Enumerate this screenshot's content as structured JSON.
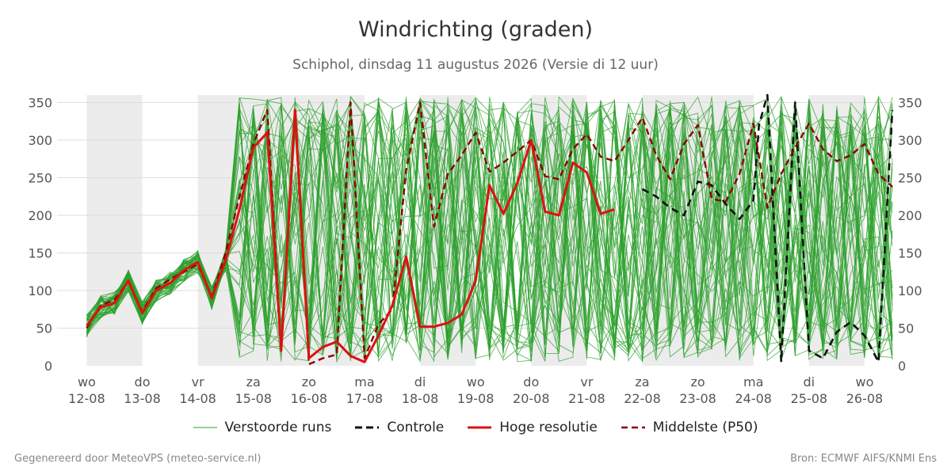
{
  "header": {
    "title": "Windrichting (graden)",
    "subtitle": "Schiphol, dinsdag 11 augustus 2026 (Versie di 12 uur)"
  },
  "footer": {
    "left": "Gegenereerd door MeteoVPS (meteo-service.nl)",
    "right": "Bron: ECMWF AIFS/KNMI Ens"
  },
  "legend": {
    "ensemble": "Verstoorde runs",
    "control": "Controle",
    "hires": "Hoge resolutie",
    "median": "Middelste (P50)"
  },
  "colors": {
    "ensemble": "#2ca02c",
    "control": "#111111",
    "hires": "#dd1111",
    "median": "#8b0000",
    "weekend_band": "#ececec",
    "grid": "#dddddd"
  },
  "chart_data": {
    "type": "line",
    "title": "Windrichting (graden)",
    "subtitle": "Schiphol, dinsdag 11 augustus 2026 (Versie di 12 uur)",
    "ylim": [
      0,
      360
    ],
    "yticks": [
      0,
      50,
      100,
      150,
      200,
      250,
      300,
      350
    ],
    "xlim": [
      11.98,
      26.5
    ],
    "x_unit": "day of August 2026",
    "x_ticks": [
      {
        "day": 12,
        "label1": "wo",
        "label2": "12-08"
      },
      {
        "day": 13,
        "label1": "do",
        "label2": "13-08"
      },
      {
        "day": 14,
        "label1": "vr",
        "label2": "14-08"
      },
      {
        "day": 15,
        "label1": "za",
        "label2": "15-08"
      },
      {
        "day": 16,
        "label1": "zo",
        "label2": "16-08"
      },
      {
        "day": 17,
        "label1": "ma",
        "label2": "17-08"
      },
      {
        "day": 18,
        "label1": "di",
        "label2": "18-08"
      },
      {
        "day": 19,
        "label1": "wo",
        "label2": "19-08"
      },
      {
        "day": 20,
        "label1": "do",
        "label2": "20-08"
      },
      {
        "day": 21,
        "label1": "vr",
        "label2": "21-08"
      },
      {
        "day": 22,
        "label1": "za",
        "label2": "22-08"
      },
      {
        "day": 23,
        "label1": "zo",
        "label2": "23-08"
      },
      {
        "day": 24,
        "label1": "ma",
        "label2": "24-08"
      },
      {
        "day": 25,
        "label1": "di",
        "label2": "25-08"
      },
      {
        "day": 26,
        "label1": "wo",
        "label2": "26-08"
      }
    ],
    "bands": [
      [
        12,
        13
      ],
      [
        14,
        17
      ],
      [
        18,
        19
      ],
      [
        20,
        21
      ],
      [
        22,
        24
      ],
      [
        25,
        26
      ]
    ],
    "grid": true,
    "legend_position": "bottom",
    "series": [
      {
        "name": "Controle",
        "x": [
          22.0,
          22.25,
          22.5,
          22.75,
          23.0,
          23.25,
          23.5,
          23.75,
          24.0,
          24.1,
          24.25,
          24.5,
          24.75,
          25.0,
          25.25,
          25.5,
          25.75,
          26.0,
          26.25,
          26.5
        ],
        "values": [
          235,
          225,
          210,
          200,
          245,
          240,
          215,
          195,
          220,
          320,
          360,
          5,
          350,
          20,
          10,
          45,
          58,
          40,
          5,
          340
        ]
      },
      {
        "name": "Hoge resolutie",
        "x": [
          12.0,
          12.25,
          12.5,
          12.75,
          13.0,
          13.25,
          13.5,
          13.75,
          14.0,
          14.25,
          14.5,
          14.75,
          15.0,
          15.25,
          15.5,
          15.75,
          16.0,
          16.25,
          16.5,
          16.75,
          17.0,
          17.25,
          17.5,
          17.75,
          18.0,
          18.25,
          18.5,
          18.75,
          19.0,
          19.25,
          19.5,
          19.75,
          20.0,
          20.25,
          20.5,
          20.75,
          21.0,
          21.25,
          21.5
        ],
        "values": [
          53,
          78,
          83,
          113,
          70,
          100,
          110,
          127,
          138,
          90,
          140,
          208,
          290,
          310,
          20,
          340,
          10,
          25,
          32,
          13,
          5,
          40,
          80,
          145,
          52,
          52,
          57,
          68,
          113,
          240,
          202,
          243,
          300,
          205,
          200,
          270,
          257,
          202,
          208
        ]
      },
      {
        "name": "Middelste (P50)",
        "x": [
          12.0,
          12.25,
          12.5,
          12.75,
          13.0,
          13.25,
          13.5,
          13.75,
          14.0,
          14.25,
          14.5,
          14.75,
          15.0,
          15.25,
          15.5,
          15.75,
          16.0,
          16.25,
          16.5,
          16.75,
          17.0,
          17.25,
          17.5,
          17.75,
          18.0,
          18.25,
          18.5,
          18.75,
          19.0,
          19.25,
          19.5,
          19.75,
          20.0,
          20.25,
          20.5,
          20.75,
          21.0,
          21.25,
          21.5,
          21.75,
          22.0,
          22.25,
          22.5,
          22.75,
          23.0,
          23.25,
          23.5,
          23.75,
          24.0,
          24.25,
          24.5,
          24.75,
          25.0,
          25.25,
          25.5,
          25.75,
          26.0,
          26.25,
          26.5
        ],
        "values": [
          50,
          80,
          88,
          112,
          72,
          103,
          115,
          125,
          135,
          92,
          150,
          225,
          295,
          340,
          20,
          335,
          2,
          10,
          15,
          350,
          10,
          55,
          75,
          260,
          350,
          185,
          255,
          280,
          310,
          258,
          270,
          285,
          300,
          252,
          248,
          288,
          308,
          278,
          272,
          300,
          330,
          280,
          248,
          295,
          320,
          222,
          218,
          255,
          322,
          210,
          255,
          290,
          322,
          288,
          272,
          280,
          295,
          255,
          238
        ]
      }
    ]
  }
}
